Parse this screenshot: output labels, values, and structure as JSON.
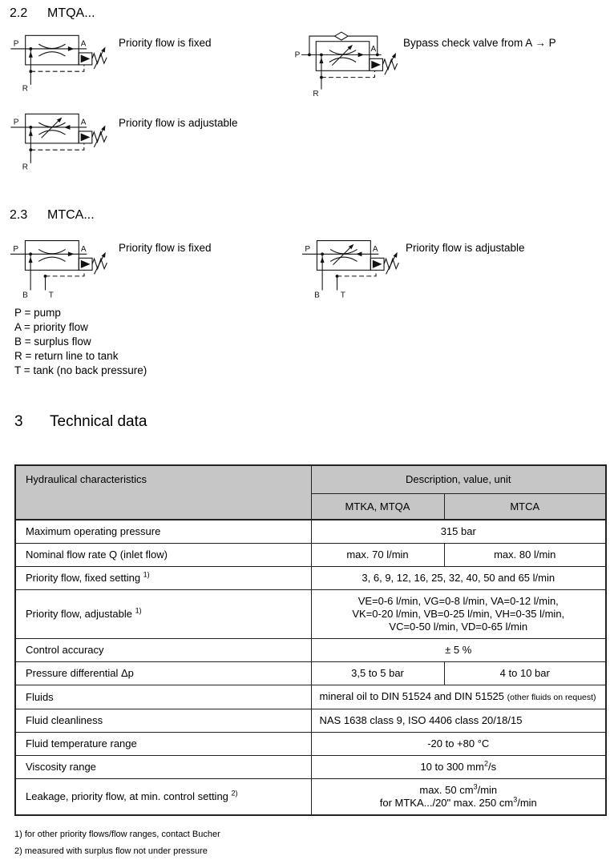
{
  "sections": {
    "mtqa": {
      "number": "2.2",
      "title": "MTQA..."
    },
    "mtca": {
      "number": "2.3",
      "title": "MTCA..."
    },
    "technical": {
      "number": "3",
      "title": "Technical data"
    }
  },
  "diagrams": {
    "mtqa_fixed": {
      "caption": "Priority flow is fixed",
      "ports": {
        "p": "P",
        "a": "A",
        "r": "R"
      }
    },
    "mtqa_bypass": {
      "caption": "Bypass check valve from A → P",
      "ports": {
        "p": "P",
        "a": "A",
        "r": "R"
      }
    },
    "mtqa_adjustable": {
      "caption": "Priority flow is adjustable",
      "ports": {
        "p": "P",
        "a": "A",
        "r": "R"
      }
    },
    "mtca_fixed": {
      "caption": "Priority flow is fixed",
      "ports": {
        "p": "P",
        "a": "A",
        "b": "B",
        "t": "T"
      }
    },
    "mtca_adjustable": {
      "caption": "Priority flow is adjustable",
      "ports": {
        "p": "P",
        "a": "A",
        "b": "B",
        "t": "T"
      }
    }
  },
  "legend": [
    "P = pump",
    "A = priority flow",
    "B = surplus flow",
    "R = return line to tank",
    "T = tank (no back pressure)"
  ],
  "table": {
    "header": {
      "col1": "Hydraulical characteristics",
      "col2": "Description, value, unit",
      "sub1": "MTKA, MTQA",
      "sub2": "MTCA"
    },
    "rows": [
      {
        "label": "Maximum operating pressure",
        "value": "315 bar"
      },
      {
        "label": "Nominal flow rate Q (inlet flow)",
        "values": [
          "max. 70 l/min",
          "max. 80 l/min"
        ]
      },
      {
        "label": "Priority flow, fixed setting ^{1)}",
        "value": "3, 6, 9, 12, 16, 25, 32, 40, 50 and 65 l/min"
      },
      {
        "label": "Priority flow, adjustable ^{1)}",
        "value": "VE=0-6 l/min, VG=0-8 l/min, VA=0-12 l/min,\nVK=0-20 l/min, VB=0-25 l/min, VH=0-35 l/min,\nVC=0-50 l/min, VD=0-65 l/min"
      },
      {
        "label": "Control accuracy",
        "value": "± 5 %"
      },
      {
        "label": "Pressure differential  Δp",
        "values": [
          "3,5 to 5 bar",
          "4 to 10 bar"
        ]
      },
      {
        "label": "Fluids",
        "value": "mineral oil to DIN 51524 and DIN 51525 ~{(other fluids on request)}",
        "align": "left"
      },
      {
        "label": "Fluid cleanliness",
        "value": "NAS 1638 class 9, ISO 4406 class 20/18/15",
        "align": "left"
      },
      {
        "label": "Fluid temperature range",
        "value": "-20 to +80 °C"
      },
      {
        "label": "Viscosity range",
        "value": "10 to 300 mm^{2}/s"
      },
      {
        "label": "Leakage, priority flow, at min. control setting ^{2)}",
        "value": "max. 50 cm^{3}/min\nfor MTKA.../20\" max. 250 cm^{3}/min"
      }
    ]
  },
  "footnotes": [
    "1) for other priority flows/flow ranges, contact Bucher",
    "2) measured with surplus flow not under pressure"
  ],
  "colors": {
    "table_header_bg": "#c6c6c6",
    "line": "#111111",
    "border": "#222222"
  }
}
